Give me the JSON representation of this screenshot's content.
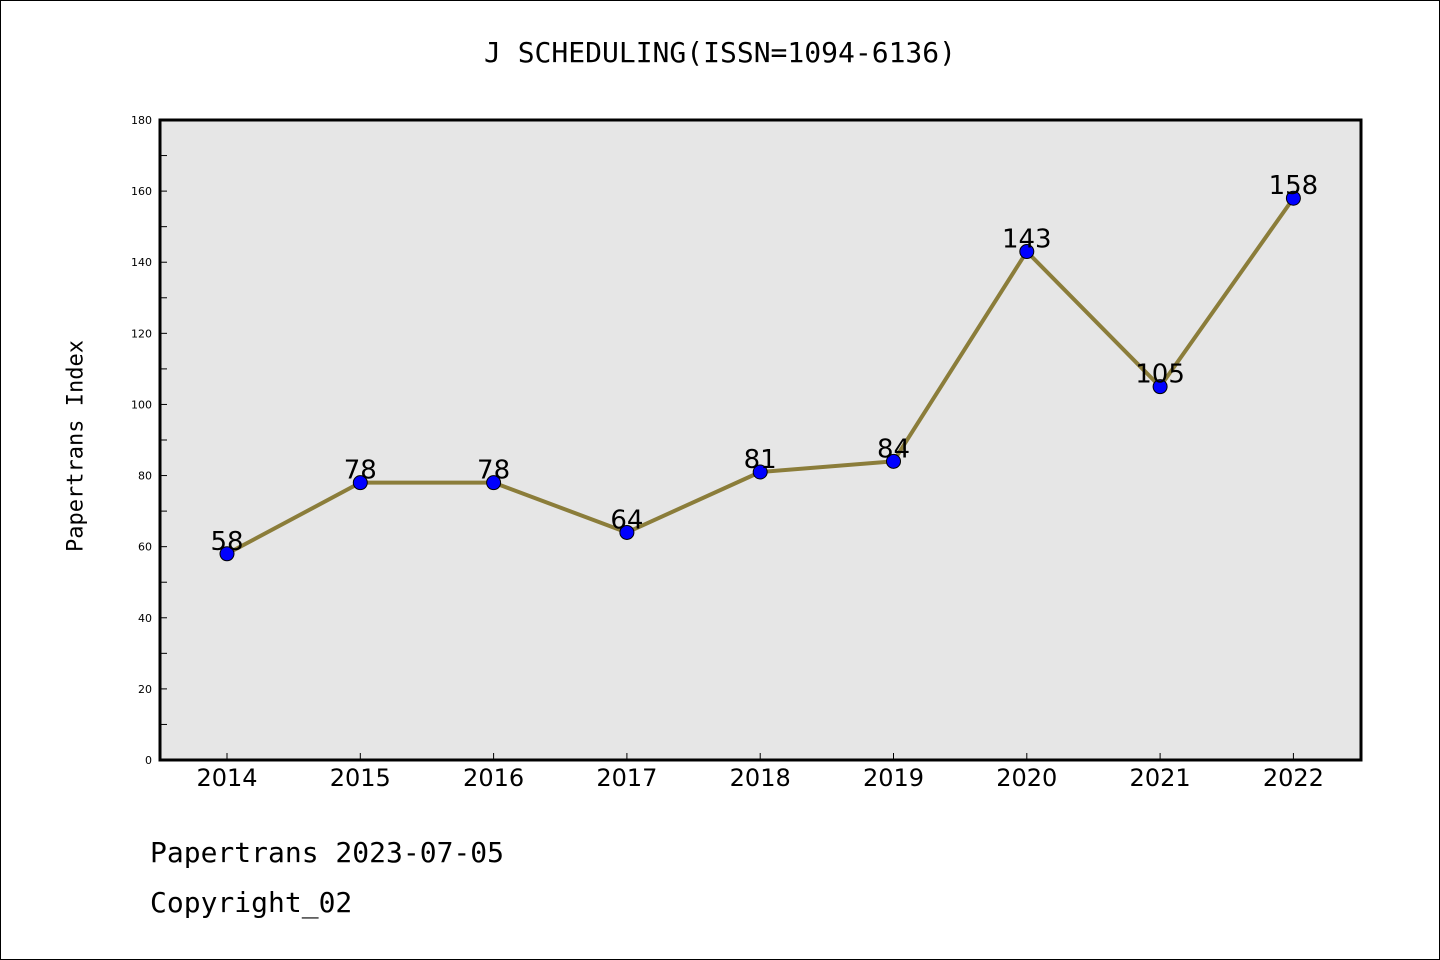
{
  "footer": {
    "date_line": "Papertrans 2023-07-05",
    "copyright": "Copyright_02"
  },
  "colors": {
    "plot_background": "#e6e6e6",
    "line": "#8b7d3a",
    "marker": "#0000ff",
    "axis": "#000000"
  },
  "chart_data": {
    "type": "line",
    "title": "J SCHEDULING(ISSN=1094-6136)",
    "xlabel": "",
    "ylabel": "Papertrans Index",
    "categories": [
      "2014",
      "2015",
      "2016",
      "2017",
      "2018",
      "2019",
      "2020",
      "2021",
      "2022"
    ],
    "series": [
      {
        "values": [
          58,
          78,
          78,
          64,
          81,
          84,
          143,
          105,
          158
        ]
      }
    ],
    "data_labels": [
      "58",
      "78",
      "78",
      "64",
      "81",
      "84",
      "143",
      "105",
      "158"
    ],
    "ylim": [
      0,
      180
    ],
    "yticks": [
      "0",
      "20",
      "40",
      "60",
      "80",
      "100",
      "120",
      "140",
      "160",
      "180"
    ],
    "grid": false,
    "legend": "none"
  }
}
